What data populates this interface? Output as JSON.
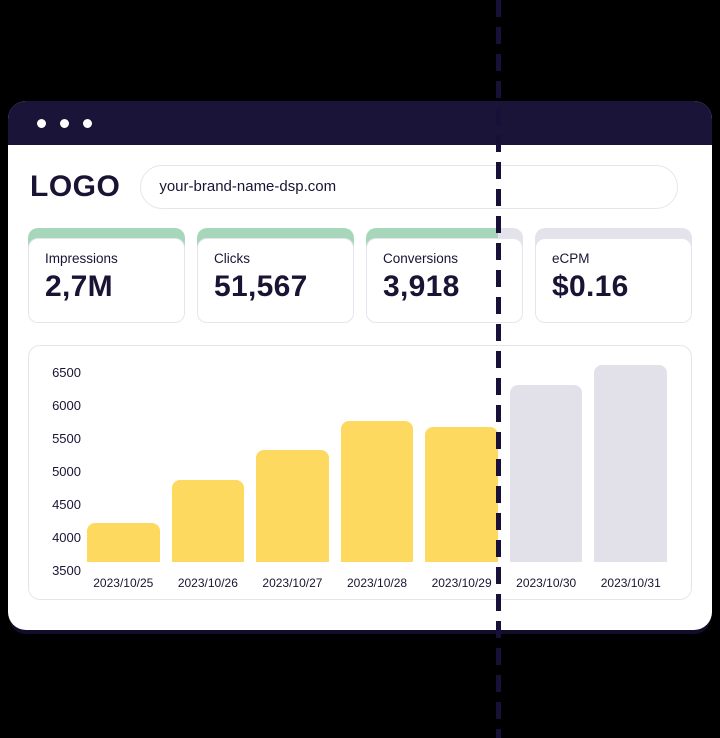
{
  "browser": {
    "logo": "LOGO",
    "url": "your-brand-name-dsp.com",
    "window_controls": [
      "dot",
      "dot",
      "dot"
    ]
  },
  "stats": [
    {
      "label": "Impressions",
      "value": "2,7M",
      "accent": "active"
    },
    {
      "label": "Clicks",
      "value": "51,567",
      "accent": "active"
    },
    {
      "label": "Conversions",
      "value": "3,918",
      "accent": "split",
      "split_percent": 84
    },
    {
      "label": "eCPM",
      "value": "$0.16",
      "accent": "inactive"
    }
  ],
  "chart_data": {
    "type": "bar",
    "title": "",
    "xlabel": "",
    "ylabel": "",
    "categories": [
      "2023/10/25",
      "2023/10/26",
      "2023/10/27",
      "2023/10/28",
      "2023/10/29",
      "2023/10/30",
      "2023/10/31"
    ],
    "values": [
      4100,
      4750,
      5200,
      5650,
      5550,
      6200,
      6500
    ],
    "bar_states": [
      "active",
      "active",
      "active",
      "active",
      "active",
      "inactive",
      "inactive"
    ],
    "yticks": [
      3500,
      4000,
      4500,
      5000,
      5500,
      6000,
      6500
    ],
    "ylim": [
      3500,
      6500
    ],
    "grid": false,
    "legend": false
  },
  "colors": {
    "navy": "#1A1333",
    "navy_chrome": "#1A1438",
    "yellow": "#FED95F",
    "gray_bar": "#E2E1E9",
    "green_accent": "#A7D7BA",
    "gray_accent": "#E4E3EB",
    "card_border": "#E6E5EE",
    "background": "#000000",
    "dashed_line": "#181038",
    "white": "#FFFFFF"
  }
}
